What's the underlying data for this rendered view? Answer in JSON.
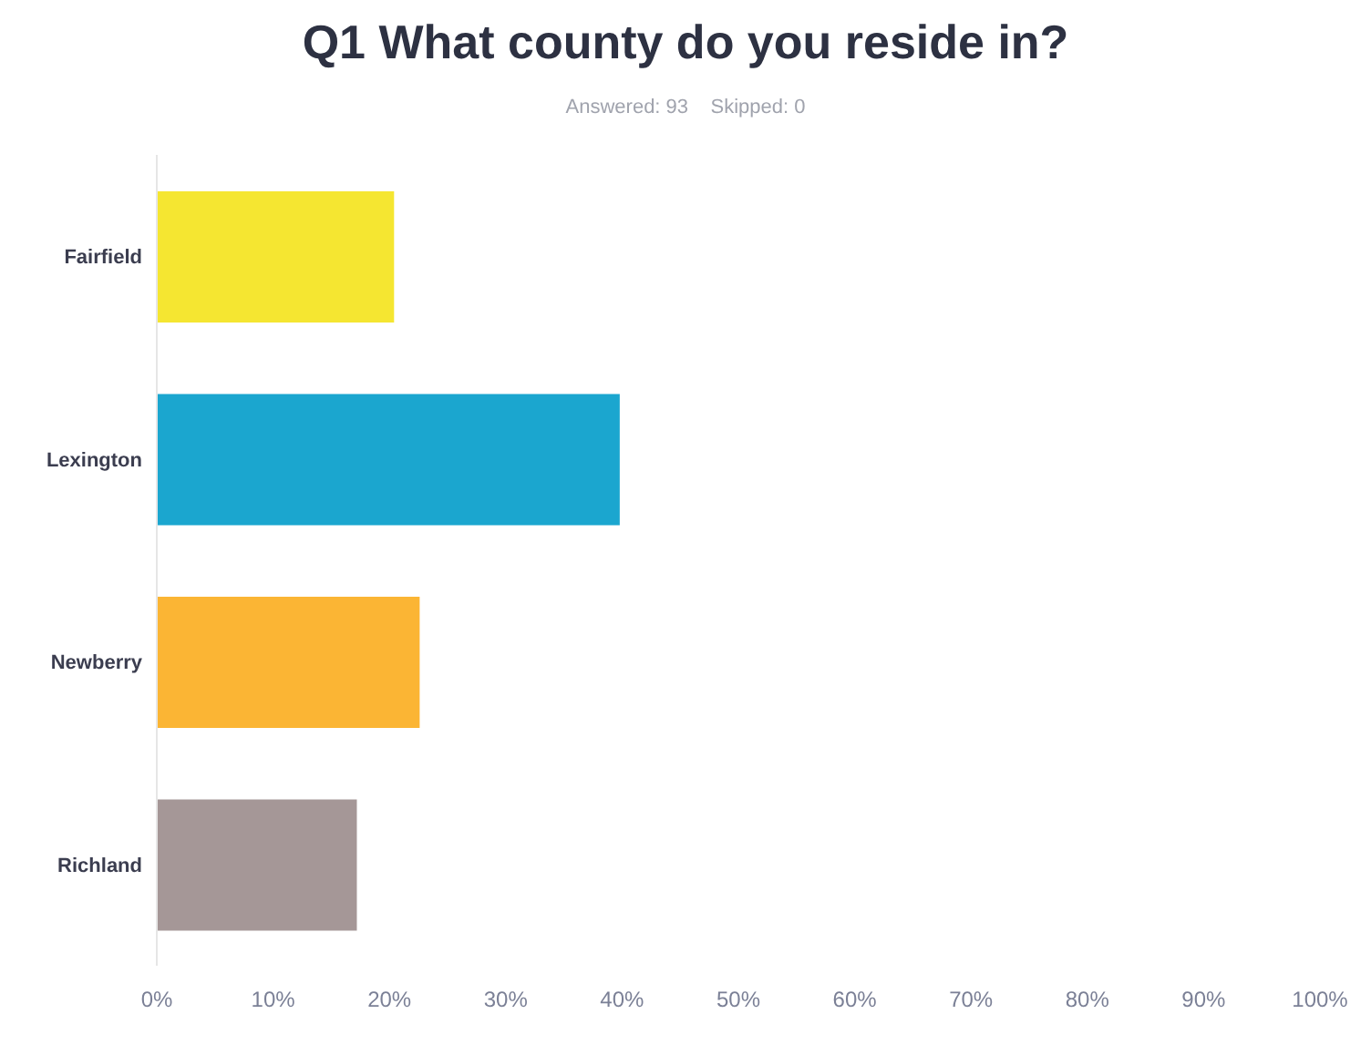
{
  "chart_data": {
    "type": "bar",
    "orientation": "horizontal",
    "title": "Q1 What county do you reside in?",
    "subtitle": "Answered: 93    Skipped: 0",
    "categories": [
      "Fairfield",
      "Lexington",
      "Newberry",
      "Richland"
    ],
    "values": [
      20.4,
      39.8,
      22.6,
      17.2
    ],
    "colors": [
      "#f5e631",
      "#1ba6cf",
      "#fbb534",
      "#a59797"
    ],
    "xlim": [
      0,
      100
    ],
    "xticks": [
      {
        "value": 0,
        "label": "0%"
      },
      {
        "value": 10,
        "label": "10%"
      },
      {
        "value": 20,
        "label": "20%"
      },
      {
        "value": 30,
        "label": "30%"
      },
      {
        "value": 40,
        "label": "40%"
      },
      {
        "value": 50,
        "label": "50%"
      },
      {
        "value": 60,
        "label": "60%"
      },
      {
        "value": 70,
        "label": "70%"
      },
      {
        "value": 80,
        "label": "80%"
      },
      {
        "value": 90,
        "label": "90%"
      },
      {
        "value": 100,
        "label": "100%"
      }
    ],
    "grid": false
  }
}
